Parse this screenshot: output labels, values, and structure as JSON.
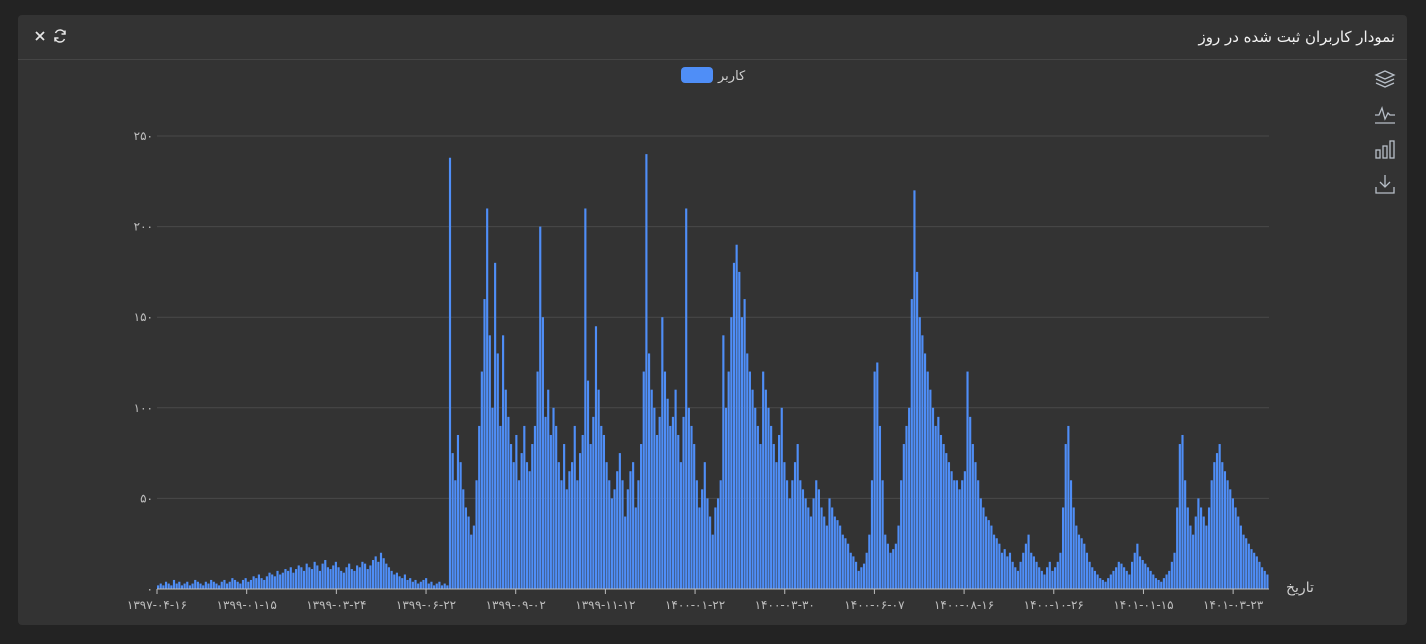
{
  "window": {
    "title": "نمودار کاربران ثبت شده در روز",
    "close_icon": "×",
    "refresh_icon": "⟳"
  },
  "toolbox": [
    "stack-icon",
    "line-chart-icon",
    "bar-chart-icon",
    "download-icon"
  ],
  "colors": {
    "bar": "#4f8ef7",
    "grid": "#4a4a4a",
    "axis": "#bdbdbd"
  },
  "chart_data": {
    "type": "bar",
    "legend": [
      "کاربر"
    ],
    "legend_position": "top-center",
    "xlabel": "تاریخ",
    "ylabel": "",
    "ylim": [
      0,
      250
    ],
    "yticks": [
      "۰",
      "۵۰",
      "۱۰۰",
      "۱۵۰",
      "۲۰۰",
      "۲۵۰"
    ],
    "xtick_labels": [
      "۱۳۹۷-۰۴-۱۶",
      "۱۳۹۹-۰۱-۱۵",
      "۱۳۹۹-۰۳-۲۴",
      "۱۳۹۹-۰۶-۲۲",
      "۱۳۹۹-۰۹-۰۲",
      "۱۳۹۹-۱۱-۱۲",
      "۱۴۰۰-۰۱-۲۲",
      "۱۴۰۰-۰۳-۳۰",
      "۱۴۰۰-۰۶-۰۷",
      "۱۴۰۰-۰۸-۱۶",
      "۱۴۰۰-۱۰-۲۶",
      "۱۴۰۱-۰۱-۱۵",
      "۱۴۰۱-۰۳-۲۳"
    ],
    "series": [
      {
        "name": "کاربر",
        "values": [
          2,
          3,
          2,
          4,
          3,
          2,
          5,
          3,
          4,
          2,
          3,
          4,
          2,
          3,
          5,
          4,
          3,
          2,
          4,
          3,
          5,
          4,
          3,
          2,
          4,
          5,
          3,
          4,
          6,
          5,
          4,
          3,
          5,
          6,
          4,
          5,
          7,
          6,
          8,
          6,
          5,
          7,
          9,
          8,
          7,
          10,
          8,
          9,
          11,
          10,
          12,
          9,
          11,
          13,
          12,
          10,
          14,
          12,
          11,
          15,
          13,
          10,
          14,
          16,
          12,
          11,
          13,
          15,
          12,
          10,
          9,
          12,
          14,
          11,
          10,
          13,
          12,
          15,
          14,
          11,
          13,
          16,
          18,
          15,
          20,
          17,
          14,
          12,
          10,
          8,
          9,
          7,
          6,
          8,
          5,
          6,
          4,
          5,
          3,
          4,
          5,
          6,
          3,
          4,
          2,
          3,
          4,
          2,
          3,
          2,
          238,
          75,
          60,
          85,
          70,
          55,
          45,
          40,
          30,
          35,
          60,
          90,
          120,
          160,
          210,
          140,
          100,
          180,
          130,
          90,
          140,
          110,
          95,
          80,
          70,
          85,
          60,
          75,
          90,
          70,
          65,
          80,
          90,
          120,
          200,
          150,
          95,
          110,
          85,
          100,
          90,
          70,
          60,
          80,
          55,
          65,
          70,
          90,
          60,
          75,
          85,
          210,
          115,
          80,
          95,
          145,
          110,
          90,
          85,
          70,
          60,
          50,
          55,
          65,
          75,
          60,
          40,
          55,
          65,
          70,
          45,
          60,
          80,
          120,
          240,
          130,
          110,
          100,
          85,
          95,
          150,
          120,
          105,
          90,
          95,
          110,
          85,
          70,
          95,
          210,
          100,
          90,
          80,
          60,
          45,
          55,
          70,
          50,
          40,
          30,
          45,
          50,
          60,
          140,
          100,
          120,
          150,
          180,
          190,
          175,
          150,
          160,
          130,
          120,
          110,
          100,
          90,
          80,
          120,
          110,
          100,
          90,
          80,
          70,
          85,
          100,
          70,
          60,
          50,
          60,
          70,
          80,
          60,
          55,
          50,
          45,
          40,
          50,
          60,
          55,
          45,
          40,
          35,
          50,
          45,
          40,
          38,
          35,
          30,
          28,
          25,
          20,
          18,
          15,
          10,
          12,
          14,
          20,
          30,
          60,
          120,
          125,
          90,
          60,
          30,
          25,
          20,
          22,
          25,
          35,
          60,
          80,
          90,
          100,
          160,
          220,
          175,
          150,
          140,
          130,
          120,
          110,
          100,
          90,
          95,
          85,
          80,
          75,
          70,
          65,
          60,
          60,
          55,
          60,
          65,
          120,
          95,
          80,
          70,
          60,
          50,
          45,
          40,
          38,
          35,
          30,
          28,
          25,
          20,
          22,
          18,
          20,
          15,
          12,
          10,
          15,
          20,
          25,
          30,
          20,
          18,
          15,
          12,
          10,
          8,
          12,
          15,
          10,
          12,
          15,
          20,
          45,
          80,
          90,
          60,
          45,
          35,
          30,
          28,
          25,
          20,
          15,
          12,
          10,
          8,
          6,
          5,
          4,
          6,
          8,
          10,
          12,
          15,
          14,
          12,
          10,
          8,
          15,
          20,
          25,
          18,
          16,
          14,
          12,
          10,
          8,
          6,
          5,
          4,
          6,
          8,
          10,
          15,
          20,
          45,
          80,
          85,
          60,
          45,
          35,
          30,
          40,
          50,
          45,
          40,
          35,
          45,
          60,
          70,
          75,
          80,
          70,
          65,
          60,
          55,
          50,
          45,
          40,
          35,
          30,
          28,
          25,
          22,
          20,
          18,
          15,
          12,
          10,
          8
        ]
      }
    ]
  }
}
